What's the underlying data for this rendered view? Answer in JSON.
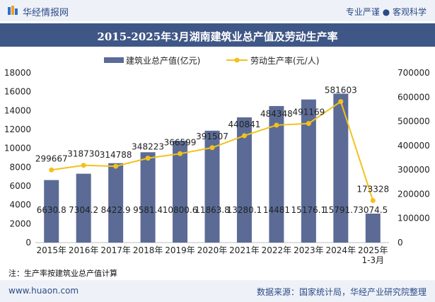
{
  "header": {
    "brand": "华经情报网",
    "tagline": "专业严谨 ● 客观科学"
  },
  "title": "2015-2025年3月湖南建筑业总产值及劳动生产率",
  "legend": {
    "bar_label": "建筑业总产值(亿元)",
    "line_label": "劳动生产率(元/人)"
  },
  "note": "注：生产率按建筑业总产值计算",
  "footer": {
    "site": "www.huaon.com",
    "source": "数据来源：国家统计局，华经产业研究院整理"
  },
  "colors": {
    "bar": "#5b6b96",
    "line": "#f2c21b",
    "title_bg": "#3f5787",
    "accent": "#2c4a86"
  },
  "chart_data": {
    "type": "bar",
    "categories": [
      "2015年",
      "2016年",
      "2017年",
      "2018年",
      "2019年",
      "2020年",
      "2021年",
      "2022年",
      "2023年",
      "2024年",
      "2025年\n1-3月"
    ],
    "series": [
      {
        "name": "建筑业总产值(亿元)",
        "type": "bar",
        "axis": "left",
        "values": [
          6630.8,
          7304.2,
          8422.9,
          9581.4,
          10800.6,
          11863.8,
          13280.1,
          14481,
          15176.1,
          15791.7,
          3074.5
        ],
        "labels": [
          "6630.8",
          "7304.2",
          "8422.9",
          "9581.4",
          "10800.6",
          "11863.8",
          "13280.1",
          "14481",
          "15176.1",
          "15791.7",
          "3074.5"
        ]
      },
      {
        "name": "劳动生产率(元/人)",
        "type": "line",
        "axis": "right",
        "values": [
          299667,
          318730,
          314788,
          348223,
          366599,
          391507,
          440841,
          484348,
          491169,
          581603,
          173328
        ],
        "labels": [
          "299667",
          "318730",
          "314788",
          "348223",
          "366599",
          "391507",
          "440841",
          "484348",
          "491169",
          "581603",
          "173328"
        ]
      }
    ],
    "y_left": {
      "min": 0,
      "max": 18000,
      "ticks": [
        "0",
        "2000",
        "4000",
        "6000",
        "8000",
        "10000",
        "12000",
        "14000",
        "16000",
        "18000"
      ]
    },
    "y_right": {
      "min": 0,
      "max": 700000,
      "ticks": [
        "0",
        "100000",
        "200000",
        "300000",
        "400000",
        "500000",
        "600000",
        "700000"
      ]
    },
    "grid": false,
    "legend_position": "top-center"
  }
}
